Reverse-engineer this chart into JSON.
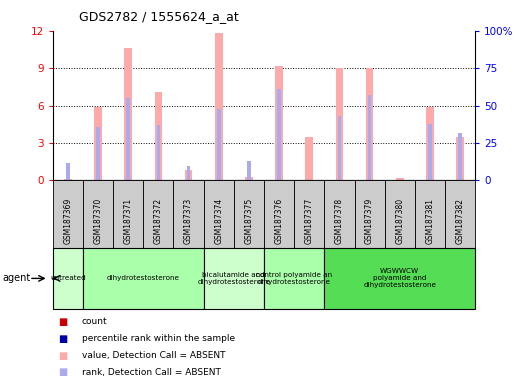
{
  "title": "GDS2782 / 1555624_a_at",
  "samples": [
    "GSM187369",
    "GSM187370",
    "GSM187371",
    "GSM187372",
    "GSM187373",
    "GSM187374",
    "GSM187375",
    "GSM187376",
    "GSM187377",
    "GSM187378",
    "GSM187379",
    "GSM187380",
    "GSM187381",
    "GSM187382"
  ],
  "absent_value_bars": [
    0.12,
    5.9,
    10.6,
    7.1,
    0.8,
    11.8,
    0.25,
    9.2,
    3.5,
    9.0,
    9.0,
    0.2,
    5.9,
    3.5
  ],
  "absent_rank_bars_pct": [
    12,
    36,
    55,
    37,
    10,
    48,
    13,
    61,
    0,
    43,
    57,
    0,
    38,
    32
  ],
  "groups": [
    {
      "label": "untreated",
      "indices": [
        0
      ],
      "color": "#ccffcc"
    },
    {
      "label": "dihydrotestosterone",
      "indices": [
        1,
        2,
        3,
        4
      ],
      "color": "#aaffaa"
    },
    {
      "label": "bicalutamide and\ndihydrotestosterone",
      "indices": [
        5,
        6
      ],
      "color": "#ccffcc"
    },
    {
      "label": "control polyamide an\ndihydrotestosterone",
      "indices": [
        7,
        8
      ],
      "color": "#aaffaa"
    },
    {
      "label": "WGWWCW\npolyamide and\ndihydrotestosterone",
      "indices": [
        9,
        10,
        11,
        12,
        13
      ],
      "color": "#55dd55"
    }
  ],
  "ylim_left": [
    0,
    12
  ],
  "ylim_right": [
    0,
    100
  ],
  "yticks_left": [
    0,
    3,
    6,
    9,
    12
  ],
  "yticks_right": [
    0,
    25,
    50,
    75,
    100
  ],
  "ytick_labels_right": [
    "0",
    "25",
    "50",
    "75",
    "100%"
  ],
  "absent_value_color": "#ffaaaa",
  "absent_rank_color": "#aaaaee",
  "count_color": "#cc0000",
  "percentile_color": "#0000aa",
  "bg_color": "#ffffff",
  "sample_bg": "#cccccc",
  "legend_items": [
    {
      "color": "#cc0000",
      "label": "count"
    },
    {
      "color": "#0000aa",
      "label": "percentile rank within the sample"
    },
    {
      "color": "#ffaaaa",
      "label": "value, Detection Call = ABSENT"
    },
    {
      "color": "#aaaaee",
      "label": "rank, Detection Call = ABSENT"
    }
  ]
}
